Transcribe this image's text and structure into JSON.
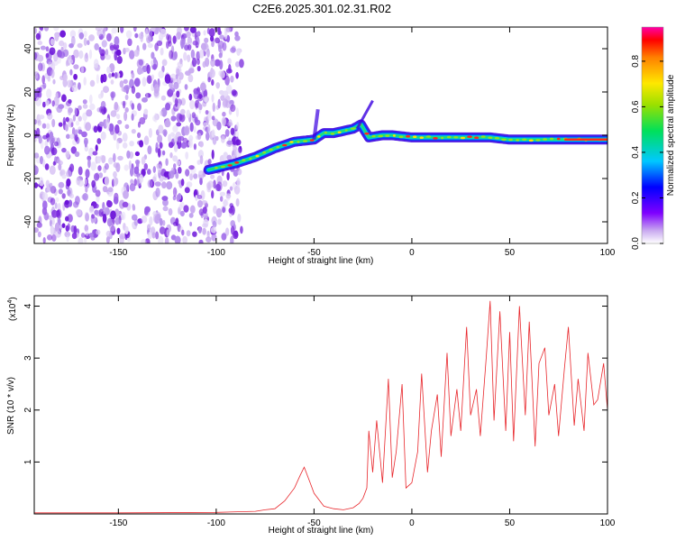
{
  "chart_data": [
    {
      "type": "heatmap",
      "title": "C2E6.2025.301.02.31.R02",
      "xlabel": "Height of straight line (km)",
      "ylabel": "Frequency (Hz)",
      "xlim": [
        -193,
        100
      ],
      "ylim": [
        -50,
        50
      ],
      "xticks": [
        -150,
        -100,
        -50,
        0,
        50,
        100
      ],
      "yticks": [
        -40,
        -20,
        0,
        20,
        40
      ],
      "noise_region_x": [
        -193,
        -87
      ],
      "trace": {
        "x": [
          -104,
          -90,
          -80,
          -70,
          -60,
          -50,
          -45,
          -40,
          -35,
          -30,
          -26,
          -22,
          -15,
          -10,
          0,
          10,
          20,
          30,
          40,
          50,
          60,
          70,
          80,
          90,
          100
        ],
        "y": [
          -16,
          -13,
          -10,
          -6,
          -3,
          -2,
          1,
          1,
          2,
          3,
          5,
          -1,
          0,
          0,
          -1,
          -1,
          -1,
          -1,
          -1,
          -2,
          -2,
          -2,
          -2,
          -2,
          -2
        ]
      },
      "colorbar": {
        "label": "Normalized spectral amplitude",
        "ticks": [
          0.0,
          0.2,
          0.4,
          0.6,
          0.8
        ],
        "tick_labels": [
          "0.0",
          "0.2",
          "0.4",
          "0.6",
          "0.8"
        ],
        "range": [
          0,
          0.95
        ]
      }
    },
    {
      "type": "line",
      "xlabel": "Height of straight line (km)",
      "ylabel": "SNR (10 * v/v)",
      "scale_label": "(x10",
      "scale_exp": "4",
      "scale_close": ")",
      "xlim": [
        -193,
        100
      ],
      "ylim": [
        0,
        4.2
      ],
      "xticks": [
        -150,
        -100,
        -50,
        0,
        50,
        100
      ],
      "yticks": [
        1,
        2,
        3,
        4
      ],
      "color": "#e8262b",
      "series": [
        {
          "name": "SNR",
          "x": [
            -193,
            -150,
            -100,
            -80,
            -75,
            -70,
            -65,
            -60,
            -57,
            -55,
            -52,
            -50,
            -47,
            -45,
            -40,
            -35,
            -30,
            -27,
            -25,
            -23,
            -22,
            -20,
            -18,
            -15,
            -12,
            -10,
            -8,
            -5,
            -3,
            0,
            3,
            5,
            8,
            10,
            13,
            15,
            18,
            20,
            23,
            25,
            28,
            30,
            33,
            35,
            38,
            40,
            42,
            45,
            48,
            50,
            52,
            55,
            58,
            60,
            63,
            65,
            68,
            70,
            73,
            75,
            78,
            80,
            83,
            85,
            88,
            90,
            93,
            95,
            98,
            100
          ],
          "values": [
            0.02,
            0.02,
            0.03,
            0.05,
            0.08,
            0.1,
            0.25,
            0.5,
            0.75,
            0.9,
            0.6,
            0.4,
            0.25,
            0.15,
            0.1,
            0.08,
            0.12,
            0.2,
            0.3,
            0.5,
            1.6,
            0.8,
            1.8,
            0.6,
            2.6,
            0.7,
            1.2,
            2.5,
            0.5,
            0.6,
            1.2,
            2.7,
            0.8,
            1.6,
            2.3,
            1.1,
            3.1,
            1.5,
            2.4,
            1.6,
            3.6,
            1.9,
            2.4,
            1.5,
            3.0,
            4.1,
            1.8,
            3.9,
            1.6,
            3.5,
            1.4,
            4.0,
            1.9,
            3.7,
            1.3,
            2.9,
            3.2,
            1.9,
            2.5,
            1.5,
            2.8,
            3.6,
            1.7,
            2.6,
            1.6,
            3.1,
            2.1,
            2.2,
            2.9,
            2.0
          ]
        }
      ]
    }
  ]
}
